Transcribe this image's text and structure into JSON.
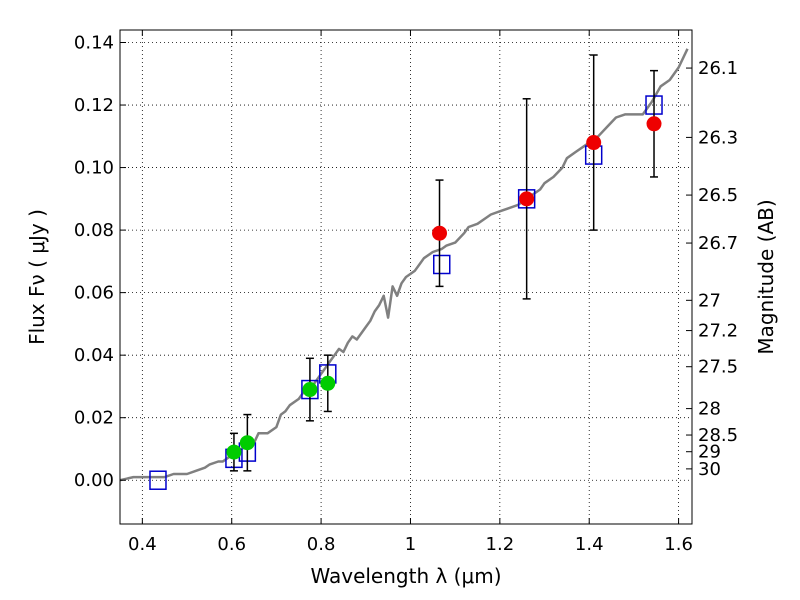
{
  "chart_data": {
    "type": "scatter",
    "title": "",
    "xlabel": "Wavelength  λ (μm)",
    "ylabel": "Flux  Fν  ( μJy )",
    "y2label": "Magnitude (AB)",
    "xlim": [
      0.35,
      1.63
    ],
    "ylim": [
      -0.014,
      0.144
    ],
    "grid": true,
    "x_ticks": [
      0.4,
      0.6,
      0.8,
      1.0,
      1.2,
      1.4,
      1.6
    ],
    "x_tick_labels": [
      "0.4",
      "0.6",
      "0.8",
      "1",
      "1.2",
      "1.4",
      "1.6"
    ],
    "y_ticks": [
      0.0,
      0.02,
      0.04,
      0.06,
      0.08,
      0.1,
      0.12,
      0.14
    ],
    "y_tick_labels": [
      "0.00",
      "0.02",
      "0.04",
      "0.06",
      "0.08",
      "0.10",
      "0.12",
      "0.14"
    ],
    "mag_ticks": [
      26.1,
      26.3,
      26.5,
      26.7,
      27,
      27.2,
      27.5,
      28,
      28.5,
      29,
      30
    ],
    "mag_tick_labels": [
      "26.1",
      "26.3",
      "26.5",
      "26.7",
      "27",
      "27.2",
      "27.5",
      "28",
      "28.5",
      "29",
      "30"
    ],
    "series": [
      {
        "kind": "line",
        "color": "#808080",
        "x": [
          0.35,
          0.38,
          0.4,
          0.43,
          0.45,
          0.47,
          0.48,
          0.5,
          0.52,
          0.54,
          0.55,
          0.57,
          0.58,
          0.6,
          0.62,
          0.64,
          0.65,
          0.66,
          0.68,
          0.7,
          0.71,
          0.72,
          0.73,
          0.75,
          0.76,
          0.78,
          0.79,
          0.8,
          0.81,
          0.82,
          0.83,
          0.84,
          0.85,
          0.86,
          0.87,
          0.88,
          0.9,
          0.91,
          0.92,
          0.93,
          0.94,
          0.95,
          0.96,
          0.97,
          0.98,
          0.99,
          1.0,
          1.01,
          1.02,
          1.03,
          1.05,
          1.07,
          1.08,
          1.1,
          1.12,
          1.13,
          1.15,
          1.17,
          1.18,
          1.2,
          1.22,
          1.24,
          1.25,
          1.27,
          1.29,
          1.3,
          1.32,
          1.34,
          1.35,
          1.37,
          1.39,
          1.4,
          1.42,
          1.44,
          1.46,
          1.48,
          1.5,
          1.52,
          1.54,
          1.56,
          1.58,
          1.6,
          1.62
        ],
        "y": [
          0.0,
          0.001,
          0.001,
          0.001,
          0.001,
          0.002,
          0.002,
          0.002,
          0.003,
          0.004,
          0.005,
          0.006,
          0.006,
          0.008,
          0.01,
          0.011,
          0.012,
          0.015,
          0.015,
          0.017,
          0.021,
          0.022,
          0.024,
          0.026,
          0.028,
          0.03,
          0.032,
          0.034,
          0.036,
          0.038,
          0.04,
          0.042,
          0.041,
          0.044,
          0.046,
          0.045,
          0.049,
          0.051,
          0.054,
          0.056,
          0.059,
          0.052,
          0.062,
          0.059,
          0.063,
          0.065,
          0.066,
          0.067,
          0.069,
          0.071,
          0.073,
          0.074,
          0.075,
          0.076,
          0.079,
          0.081,
          0.082,
          0.084,
          0.085,
          0.086,
          0.087,
          0.088,
          0.089,
          0.091,
          0.093,
          0.095,
          0.097,
          0.1,
          0.103,
          0.105,
          0.107,
          0.108,
          0.11,
          0.113,
          0.116,
          0.117,
          0.117,
          0.117,
          0.121,
          0.126,
          0.128,
          0.132,
          0.138
        ]
      },
      {
        "kind": "square",
        "color": "#0000cc",
        "x": [
          0.435,
          0.605,
          0.635,
          0.775,
          0.815,
          1.07,
          1.26,
          1.41,
          1.545
        ],
        "y": [
          0.0,
          0.007,
          0.009,
          0.029,
          0.034,
          0.069,
          0.09,
          0.104,
          0.12
        ]
      },
      {
        "kind": "circle",
        "color": "#00cc00",
        "x": [
          0.605,
          0.635,
          0.775,
          0.815
        ],
        "y": [
          0.009,
          0.012,
          0.029,
          0.031
        ],
        "err": [
          0.006,
          0.009,
          0.01,
          0.009
        ]
      },
      {
        "kind": "circle",
        "color": "#ee0000",
        "x": [
          1.065,
          1.26,
          1.41,
          1.545
        ],
        "y": [
          0.079,
          0.09,
          0.108,
          0.114
        ],
        "err": [
          0.017,
          0.032,
          0.028,
          0.017
        ]
      }
    ]
  }
}
